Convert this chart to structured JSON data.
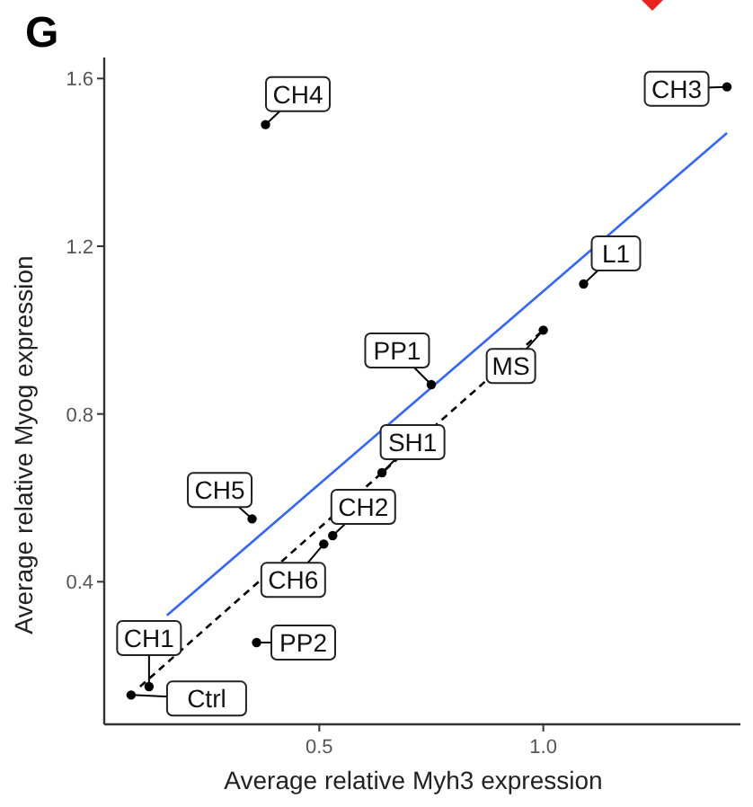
{
  "chart_data": {
    "type": "scatter",
    "title": "G",
    "xlabel": "Average relative Myh3 expression",
    "ylabel": "Average relative Myog expression",
    "xlim": [
      0.02,
      1.44
    ],
    "ylim": [
      0.06,
      1.65
    ],
    "xticks": [
      0.5,
      {
        "value": 1,
        "label": "1.0"
      }
    ],
    "yticks": [
      0.4,
      0.8,
      1.2,
      1.6
    ],
    "grid": false,
    "marker": "circle",
    "series": [
      {
        "color": "#000000",
        "x": [
          0.38,
          1.41,
          1.09,
          1.0,
          0.75,
          0.64,
          0.35,
          0.53,
          0.51,
          0.36,
          0.12,
          0.08
        ],
        "values": [
          1.49,
          1.58,
          1.11,
          1.0,
          0.87,
          0.66,
          0.55,
          0.51,
          0.49,
          0.255,
          0.15,
          0.13
        ]
      },
      {
        "type": "line",
        "color": "#3366ff",
        "line_style": "solid",
        "marker": "none",
        "x": [
          0.16,
          1.41
        ],
        "values": [
          0.32,
          1.47
        ]
      },
      {
        "type": "line",
        "color": "#000000",
        "line_style": "dashed",
        "marker": "none",
        "x": [
          0.1,
          1.0
        ],
        "values": [
          0.15,
          1.0
        ]
      }
    ],
    "annotations": [
      {
        "text": "CH4",
        "x": 0.38,
        "y": 1.49
      },
      {
        "text": "CH3",
        "x": 1.41,
        "y": 1.58
      },
      {
        "text": "L1",
        "x": 1.09,
        "y": 1.11
      },
      {
        "text": "MS",
        "x": 1.0,
        "y": 1.0
      },
      {
        "text": "PP1",
        "x": 0.75,
        "y": 0.87
      },
      {
        "text": "SH1",
        "x": 0.64,
        "y": 0.66
      },
      {
        "text": "CH5",
        "x": 0.35,
        "y": 0.55
      },
      {
        "text": "CH2",
        "x": 0.53,
        "y": 0.51
      },
      {
        "text": "CH6",
        "x": 0.51,
        "y": 0.49
      },
      {
        "text": "PP2",
        "x": 0.36,
        "y": 0.255
      },
      {
        "text": "CH1",
        "x": 0.12,
        "y": 0.15
      },
      {
        "text": "Ctrl",
        "x": 0.08,
        "y": 0.13
      }
    ]
  }
}
